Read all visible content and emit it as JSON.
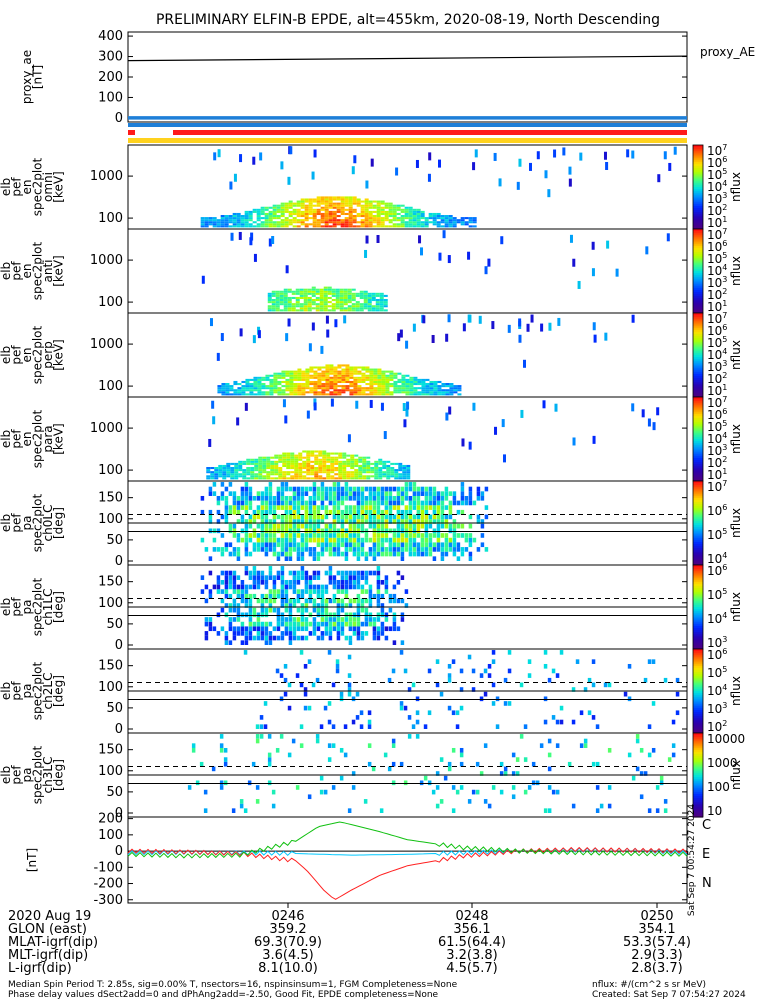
{
  "title": "PRELIMINARY ELFIN-B EPDE, alt=455km, 2020-08-19, North Descending",
  "colors": {
    "trace_black": "#000000",
    "ae_blue": "#1e7fd8",
    "bar_red": "#ff1a1a",
    "bar_yellow": "#ffd21e",
    "comp_c": "#00c8ff",
    "comp_e": "#ff2020",
    "comp_n": "#10c010"
  },
  "chart_data": [
    {
      "type": "line",
      "panel": "proxy_ae",
      "ylabel": [
        "proxy_ae",
        "[nT]"
      ],
      "yticks": [
        "400",
        "300",
        "200",
        "100",
        "0"
      ],
      "ylim": [
        -20,
        420
      ],
      "series": [
        {
          "name": "proxy_AE",
          "x": [
            0,
            1
          ],
          "values": [
            280,
            302
          ]
        }
      ]
    },
    {
      "type": "heatmap",
      "panel": "omni",
      "ylabel": [
        "elb",
        "pef",
        "en",
        "spec2plot",
        "omni",
        "[keV]"
      ],
      "yticks": [
        "1000",
        "100"
      ],
      "colorbar": {
        "label": "nflux",
        "ticks": [
          "10^7",
          "10^6",
          "10^5",
          "10^4",
          "10^3",
          "10^2",
          "10^1"
        ]
      }
    },
    {
      "type": "heatmap",
      "panel": "anti",
      "ylabel": [
        "elb",
        "pef",
        "en",
        "spec2plot",
        "anti",
        "[keV]"
      ],
      "yticks": [
        "1000",
        "100"
      ],
      "colorbar": {
        "label": "nflux",
        "ticks": [
          "10^7",
          "10^6",
          "10^5",
          "10^4",
          "10^3",
          "10^2",
          "10^1"
        ]
      }
    },
    {
      "type": "heatmap",
      "panel": "perp",
      "ylabel": [
        "elb",
        "pef",
        "en",
        "spec2plot",
        "perp",
        "[keV]"
      ],
      "yticks": [
        "1000",
        "100"
      ],
      "colorbar": {
        "label": "nflux",
        "ticks": [
          "10^7",
          "10^6",
          "10^5",
          "10^4",
          "10^3",
          "10^2",
          "10^1"
        ]
      }
    },
    {
      "type": "heatmap",
      "panel": "para",
      "ylabel": [
        "elb",
        "pef",
        "en",
        "spec2plot",
        "para",
        "[keV]"
      ],
      "yticks": [
        "1000",
        "100"
      ],
      "colorbar": {
        "label": "nflux",
        "ticks": [
          "10^7",
          "10^6",
          "10^5",
          "10^4",
          "10^3",
          "10^2",
          "10^1"
        ]
      }
    },
    {
      "type": "heatmap",
      "panel": "ch0LC",
      "ylabel": [
        "elb",
        "pef",
        "pa",
        "spec2plot",
        "ch0LC",
        "[deg]"
      ],
      "yticks": [
        "150",
        "100",
        "50",
        "0"
      ],
      "colorbar": {
        "label": "nflux",
        "ticks": [
          "10^7",
          "10^6",
          "10^5",
          "10^4"
        ]
      }
    },
    {
      "type": "heatmap",
      "panel": "ch1LC",
      "ylabel": [
        "elb",
        "pef",
        "pa",
        "spec2plot",
        "ch1LC",
        "[deg]"
      ],
      "yticks": [
        "150",
        "100",
        "50",
        "0"
      ],
      "colorbar": {
        "label": "nflux",
        "ticks": [
          "10^6",
          "10^5",
          "10^4",
          "10^3"
        ]
      }
    },
    {
      "type": "heatmap",
      "panel": "ch2LC",
      "ylabel": [
        "elb",
        "pef",
        "pa",
        "spec2plot",
        "ch2LC",
        "[deg]"
      ],
      "yticks": [
        "150",
        "100",
        "50",
        "0"
      ],
      "colorbar": {
        "label": "nflux",
        "ticks": [
          "10^6",
          "10^5",
          "10^4",
          "10^3",
          "10^2"
        ]
      }
    },
    {
      "type": "heatmap",
      "panel": "ch3LC",
      "ylabel": [
        "elb",
        "pef",
        "pa",
        "spec2plot",
        "ch3LC",
        "[deg]"
      ],
      "yticks": [
        "150",
        "100",
        "50",
        "0"
      ],
      "colorbar": {
        "label": "nflux",
        "ticks": [
          "10000",
          "1000",
          "100",
          "10"
        ]
      }
    },
    {
      "type": "line",
      "panel": "fgm",
      "ylabel": [
        "[nT]"
      ],
      "yticks": [
        "200",
        "100",
        "0",
        "-100",
        "-200",
        "-300"
      ],
      "ylim": [
        -320,
        210
      ],
      "legend": [
        "C",
        "E",
        "N"
      ],
      "series": [
        {
          "name": "C",
          "color": "#00c8ff",
          "x": [
            0,
            0.1,
            0.2,
            0.3,
            0.4,
            0.5,
            0.6,
            0.7,
            0.8,
            0.9,
            1.0
          ],
          "values": [
            -10,
            -8,
            -10,
            -15,
            -25,
            -20,
            -10,
            0,
            5,
            5,
            -10
          ]
        },
        {
          "name": "E",
          "color": "#ff2020",
          "x": [
            0,
            0.1,
            0.2,
            0.3,
            0.32,
            0.35,
            0.37,
            0.4,
            0.45,
            0.5,
            0.6,
            0.7,
            0.8,
            0.9,
            1.0
          ],
          "values": [
            0,
            -5,
            -15,
            -60,
            -120,
            -240,
            -300,
            -240,
            -150,
            -90,
            -30,
            0,
            10,
            5,
            0
          ]
        },
        {
          "name": "N",
          "color": "#10c010",
          "x": [
            0,
            0.1,
            0.2,
            0.3,
            0.34,
            0.38,
            0.45,
            0.5,
            0.6,
            0.7,
            0.8,
            0.9,
            1.0
          ],
          "values": [
            -20,
            -30,
            -25,
            60,
            150,
            180,
            120,
            70,
            20,
            0,
            -10,
            -15,
            -20
          ]
        }
      ],
      "side_text": "Sat Sep  7 00:54:27 2024"
    }
  ],
  "footer": {
    "row_labels": [
      "2020 Aug 19",
      "GLON (east)",
      "MLAT-igrf(dip)",
      "MLT-igrf(dip)",
      "L-igrf(dip)"
    ],
    "columns": [
      [
        "0246",
        "359.2",
        "69.3(70.9)",
        "3.6(4.5)",
        "8.1(10.0)"
      ],
      [
        "0248",
        "356.1",
        "61.5(64.4)",
        "3.2(3.8)",
        "4.5(5.7)"
      ],
      [
        "0250",
        "354.1",
        "53.3(57.4)",
        "2.9(3.3)",
        "2.8(3.7)"
      ]
    ],
    "note1": "Median Spin Period T: 2.85s, sig=0.00% T, nsectors=16, nspinsinsum=1, FGM Completeness=None",
    "note2": "Phase delay values dSect2add=0 and dPhAng2add=-2.50, Good Fit, EPDE completeness=None",
    "note3": "nflux: #/(cm^2 s sr MeV)",
    "note4": "Created: Sat Sep  7 07:54:27 2024"
  }
}
